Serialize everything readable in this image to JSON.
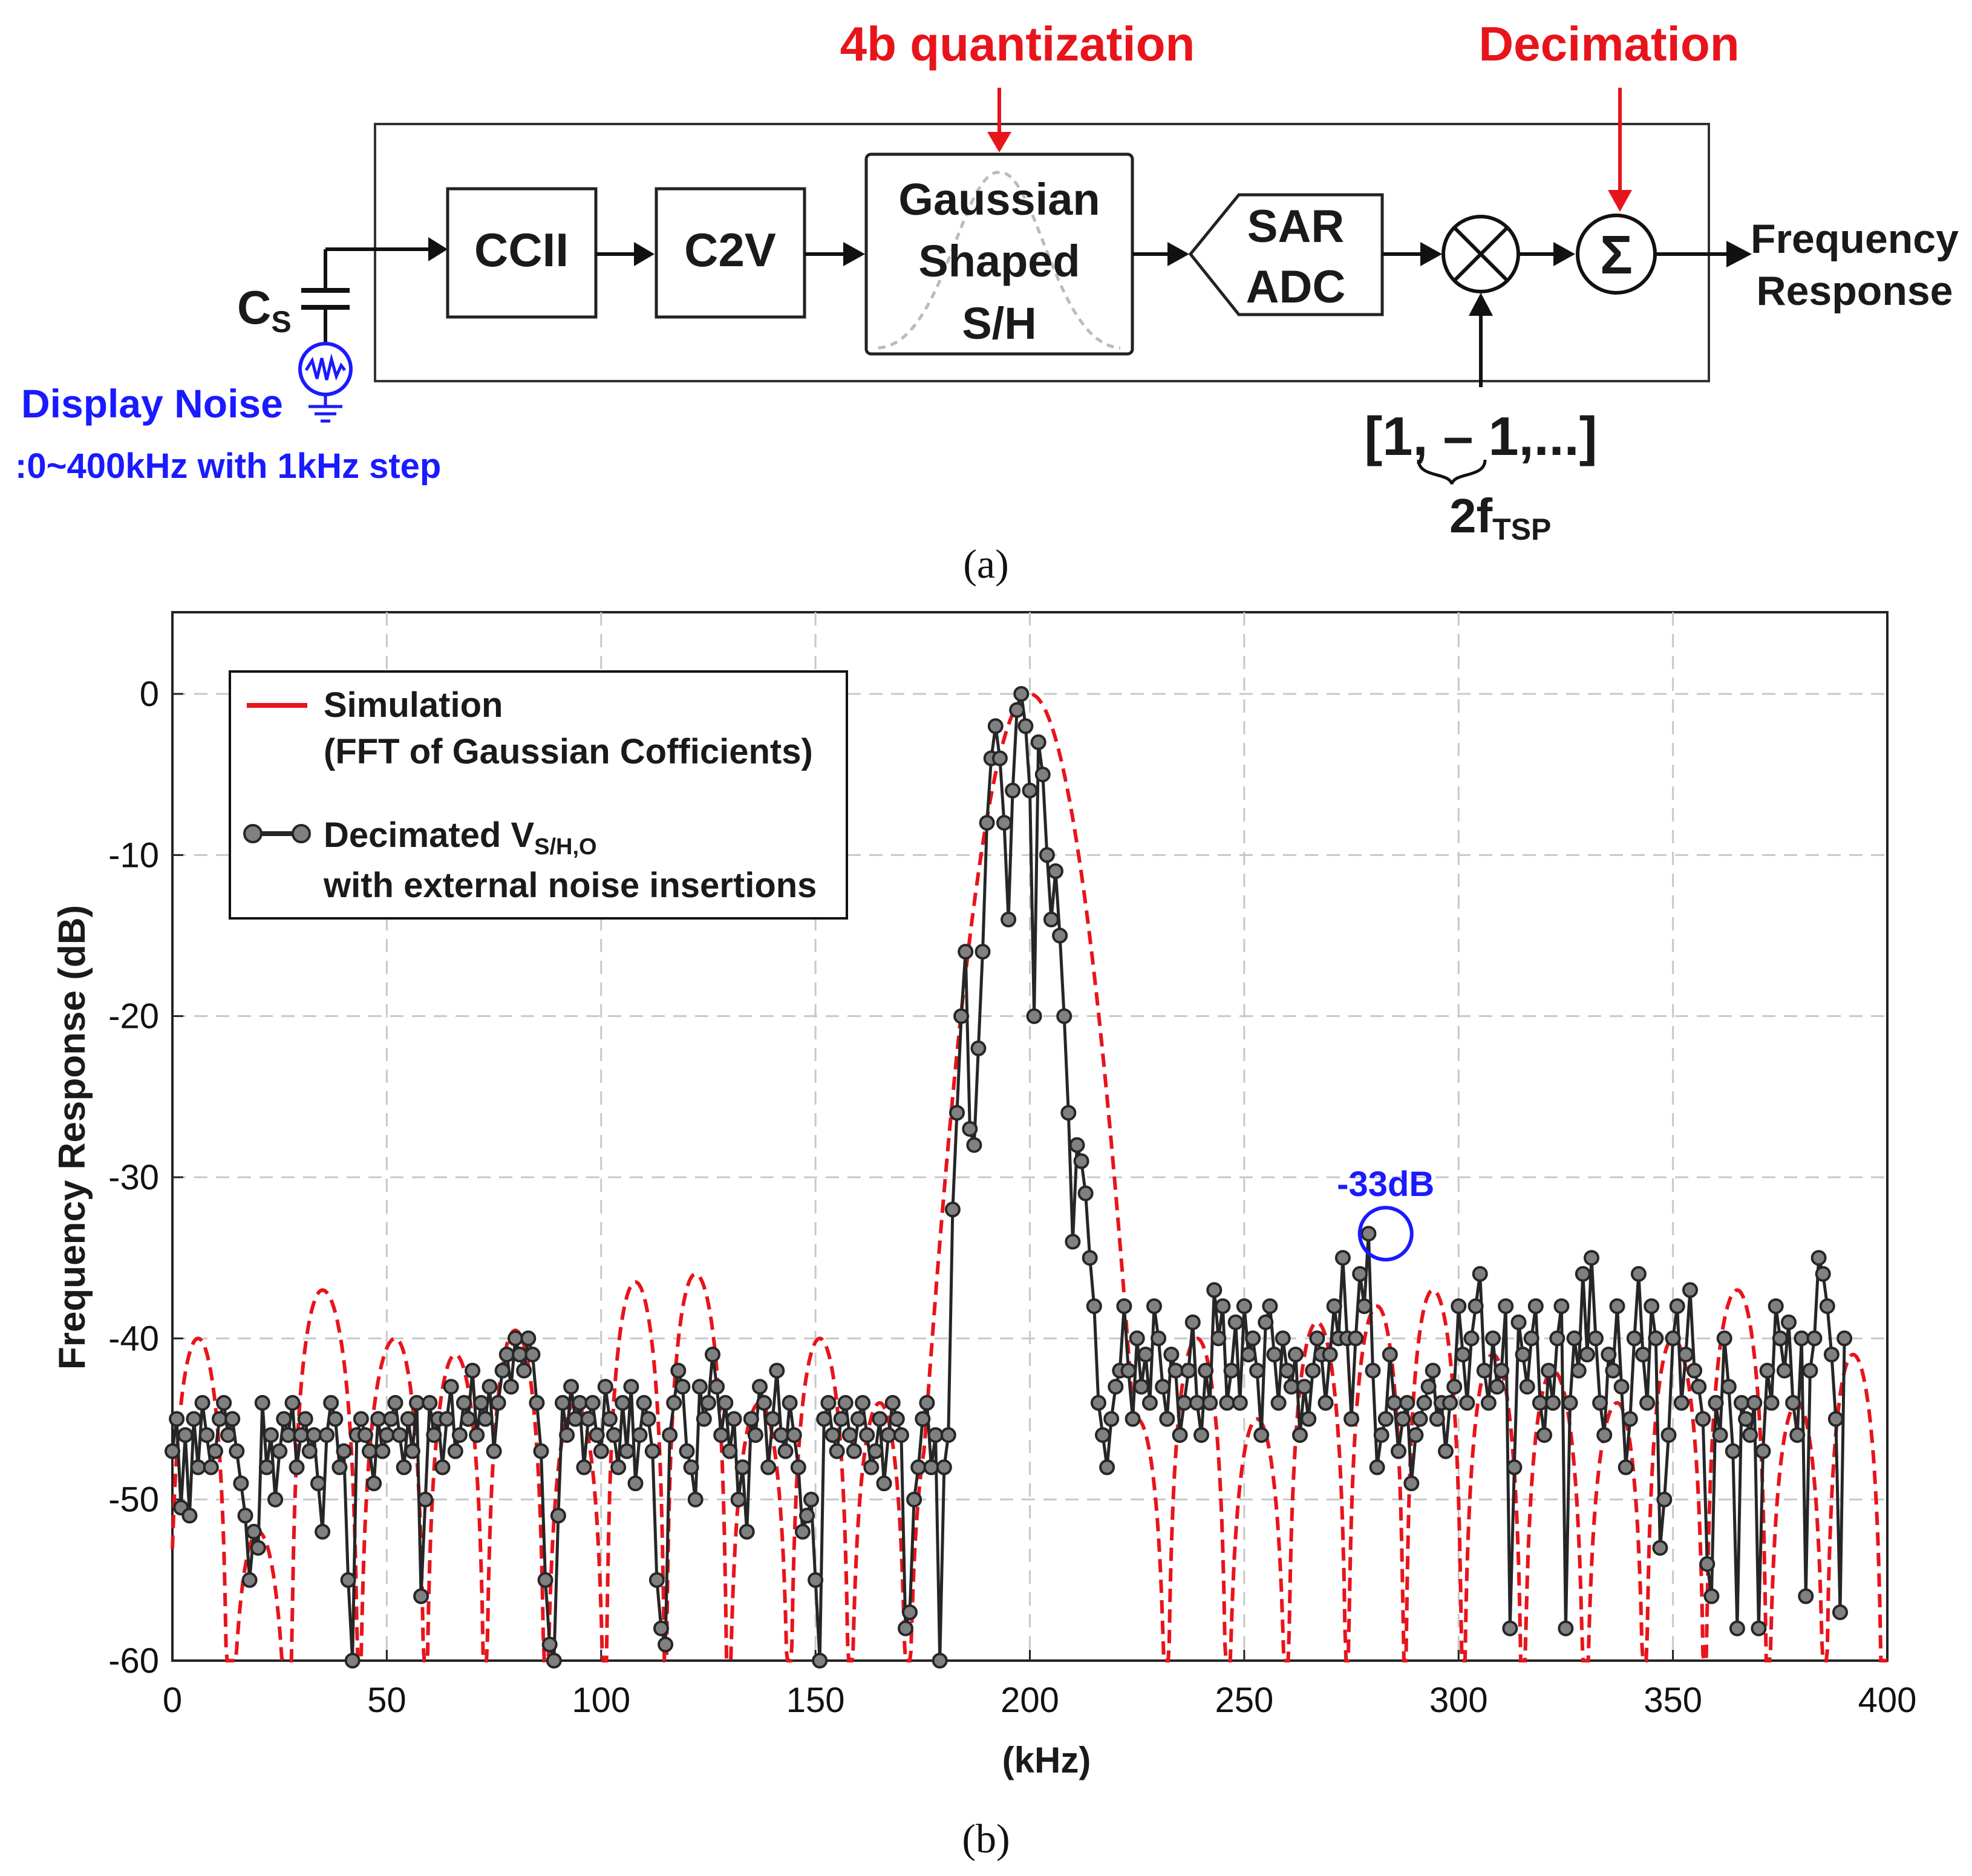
{
  "diagram": {
    "blocks": {
      "ccii": "CCII",
      "c2v": "C2V",
      "gauss_line1": "Gaussian",
      "gauss_line2": "Shaped",
      "gauss_line3": "S/H",
      "sar_line1": "SAR",
      "sar_line2": "ADC"
    },
    "annotations": {
      "quantization": "4b quantization",
      "decimation": "Decimation"
    },
    "input": {
      "cap_label": "C",
      "cap_sub": "S",
      "noise_label": "Display Noise",
      "noise_range": ":0~400kHz with 1kHz step"
    },
    "output_line1": "Frequency",
    "output_line2": "Response",
    "mixer_sequence": "[1, – 1,...]",
    "mixer_freq": "2f",
    "mixer_freq_sub": "TSP",
    "sum_symbol": "Σ",
    "caption": "(a)"
  },
  "colors": {
    "accent_red": "#e8141b",
    "accent_blue": "#1a1aff",
    "data_series": "#262626",
    "marker_fill": "#808080",
    "simulation": "#e8141b"
  },
  "chart_data": {
    "type": "line",
    "xlabel": "(kHz)",
    "ylabel": "Frequency Response (dB)",
    "xlim": [
      0,
      400
    ],
    "ylim": [
      -60,
      5
    ],
    "xticks": [
      0,
      50,
      100,
      150,
      200,
      250,
      300,
      350,
      400
    ],
    "yticks": [
      0,
      -10,
      -20,
      -30,
      -40,
      -50,
      -60
    ],
    "grid": true,
    "legend_position": "top-left",
    "caption": "(b)",
    "legend": {
      "sim_line1": "Simulation",
      "sim_line2": "(FFT of Gaussian Cofficients)",
      "meas_line1": "Decimated V",
      "meas_sub": "S/H,O",
      "meas_line2": "with external noise insertions"
    },
    "annotation": {
      "text": "-33dB",
      "x": 283,
      "y": -33.5
    },
    "series": [
      {
        "name": "Simulation (FFT of Gaussian Cofficients)",
        "style": "dashed",
        "main_lobe": {
          "center_khz": 200,
          "sigma_khz": 7.5,
          "peak_db": 0
        },
        "side_lobes": [
          {
            "x": 6,
            "y": -40
          },
          {
            "x": 20,
            "y": -52
          },
          {
            "x": 35,
            "y": -37
          },
          {
            "x": 52,
            "y": -40
          },
          {
            "x": 66,
            "y": -41
          },
          {
            "x": 80,
            "y": -39.5
          },
          {
            "x": 94,
            "y": -44
          },
          {
            "x": 108,
            "y": -36.5
          },
          {
            "x": 122,
            "y": -36
          },
          {
            "x": 137,
            "y": -44
          },
          {
            "x": 151,
            "y": -40
          },
          {
            "x": 165,
            "y": -44
          },
          {
            "x": 178,
            "y": -45
          },
          {
            "x": 225,
            "y": -45
          },
          {
            "x": 239,
            "y": -40
          },
          {
            "x": 253,
            "y": -45
          },
          {
            "x": 267,
            "y": -39
          },
          {
            "x": 281,
            "y": -38
          },
          {
            "x": 294,
            "y": -37
          },
          {
            "x": 308,
            "y": -41
          },
          {
            "x": 322,
            "y": -42
          },
          {
            "x": 337,
            "y": -44
          },
          {
            "x": 350,
            "y": -40
          },
          {
            "x": 365,
            "y": -37
          },
          {
            "x": 379,
            "y": -44
          },
          {
            "x": 392,
            "y": -41
          }
        ]
      },
      {
        "name": "Decimated V_S/H,O with external noise insertions",
        "style": "line+markers",
        "x_start": 0,
        "x_step": 1,
        "values": [
          -47,
          -45,
          -50.5,
          -46,
          -51,
          -45,
          -48,
          -44,
          -46,
          -48,
          -47,
          -45,
          -44,
          -46,
          -45,
          -47,
          -49,
          -51,
          -55,
          -52,
          -53,
          -44,
          -48,
          -46,
          -50,
          -47,
          -45,
          -46,
          -44,
          -48,
          -46,
          -45,
          -47,
          -46,
          -49,
          -52,
          -46,
          -44,
          -45,
          -48,
          -47,
          -55,
          -60,
          -46,
          -45,
          -46,
          -47,
          -49,
          -45,
          -47,
          -46,
          -45,
          -44,
          -46,
          -48,
          -45,
          -47,
          -44,
          -56,
          -50,
          -44,
          -46,
          -45,
          -48,
          -45,
          -43,
          -47,
          -46,
          -44,
          -45,
          -42,
          -46,
          -44,
          -45,
          -43,
          -47,
          -44,
          -42,
          -41,
          -43,
          -40,
          -41,
          -42,
          -40,
          -41,
          -44,
          -47,
          -55,
          -59,
          -60,
          -51,
          -44,
          -46,
          -43,
          -45,
          -44,
          -48,
          -45,
          -44,
          -46,
          -47,
          -43,
          -45,
          -46,
          -48,
          -44,
          -47,
          -43,
          -49,
          -46,
          -44,
          -45,
          -47,
          -55,
          -58,
          -59,
          -46,
          -44,
          -42,
          -43,
          -47,
          -48,
          -50,
          -43,
          -45,
          -44,
          -41,
          -43,
          -46,
          -44,
          -47,
          -45,
          -50,
          -48,
          -52,
          -45,
          -46,
          -43,
          -44,
          -48,
          -45,
          -42,
          -46,
          -47,
          -44,
          -46,
          -48,
          -52,
          -51,
          -50,
          -55,
          -60,
          -45,
          -44,
          -46,
          -47,
          -45,
          -44,
          -46,
          -47,
          -45,
          -44,
          -46,
          -48,
          -47,
          -45,
          -49,
          -46,
          -44,
          -45,
          -46,
          -58,
          -57,
          -50,
          -48,
          -45,
          -44,
          -48,
          -46,
          -60,
          -48,
          -46,
          -32,
          -26,
          -20,
          -16,
          -27,
          -28,
          -22,
          -16,
          -8,
          -4,
          -2,
          -4,
          -8,
          -14,
          -6,
          -1,
          0,
          -2,
          -6,
          -20,
          -3,
          -5,
          -10,
          -14,
          -11,
          -15,
          -20,
          -26,
          -34,
          -28,
          -29,
          -31,
          -35,
          -38,
          -44,
          -46,
          -48,
          -45,
          -43,
          -42,
          -38,
          -42,
          -45,
          -40,
          -43,
          -41,
          -44,
          -38,
          -40,
          -43,
          -45,
          -41,
          -42,
          -46,
          -44,
          -42,
          -39,
          -44,
          -46,
          -42,
          -44,
          -37,
          -40,
          -38,
          -44,
          -42,
          -39,
          -44,
          -38,
          -41,
          -40,
          -42,
          -46,
          -39,
          -38,
          -41,
          -44,
          -40,
          -42,
          -43,
          -41,
          -46,
          -43,
          -45,
          -42,
          -40,
          -41,
          -44,
          -41,
          -38,
          -40,
          -35,
          -40,
          -45,
          -40,
          -36,
          -38,
          -33.5,
          -42,
          -48,
          -46,
          -45,
          -41,
          -44,
          -47,
          -45,
          -44,
          -49,
          -46,
          -45,
          -44,
          -43,
          -42,
          -45,
          -44,
          -47,
          -44,
          -43,
          -38,
          -41,
          -44,
          -40,
          -38,
          -36,
          -42,
          -44,
          -40,
          -43,
          -42,
          -38,
          -58,
          -48,
          -39,
          -41,
          -43,
          -40,
          -38,
          -44,
          -46,
          -42,
          -44,
          -40,
          -38,
          -58,
          -44,
          -40,
          -42,
          -36,
          -41,
          -35,
          -40,
          -44,
          -46,
          -41,
          -42,
          -38,
          -43,
          -48,
          -45,
          -40,
          -36,
          -41,
          -44,
          -38,
          -40,
          -53,
          -50,
          -46,
          -40,
          -38,
          -44,
          -41,
          -37,
          -42,
          -43,
          -45,
          -54,
          -56,
          -44,
          -46,
          -40,
          -43,
          -47,
          -58,
          -44,
          -45,
          -46,
          -44,
          -58,
          -47,
          -42,
          -44,
          -38,
          -40,
          -42,
          -39,
          -44,
          -46,
          -40,
          -56,
          -42,
          -40,
          -35,
          -36,
          -38,
          -41,
          -45,
          -57,
          -40
        ]
      }
    ]
  }
}
